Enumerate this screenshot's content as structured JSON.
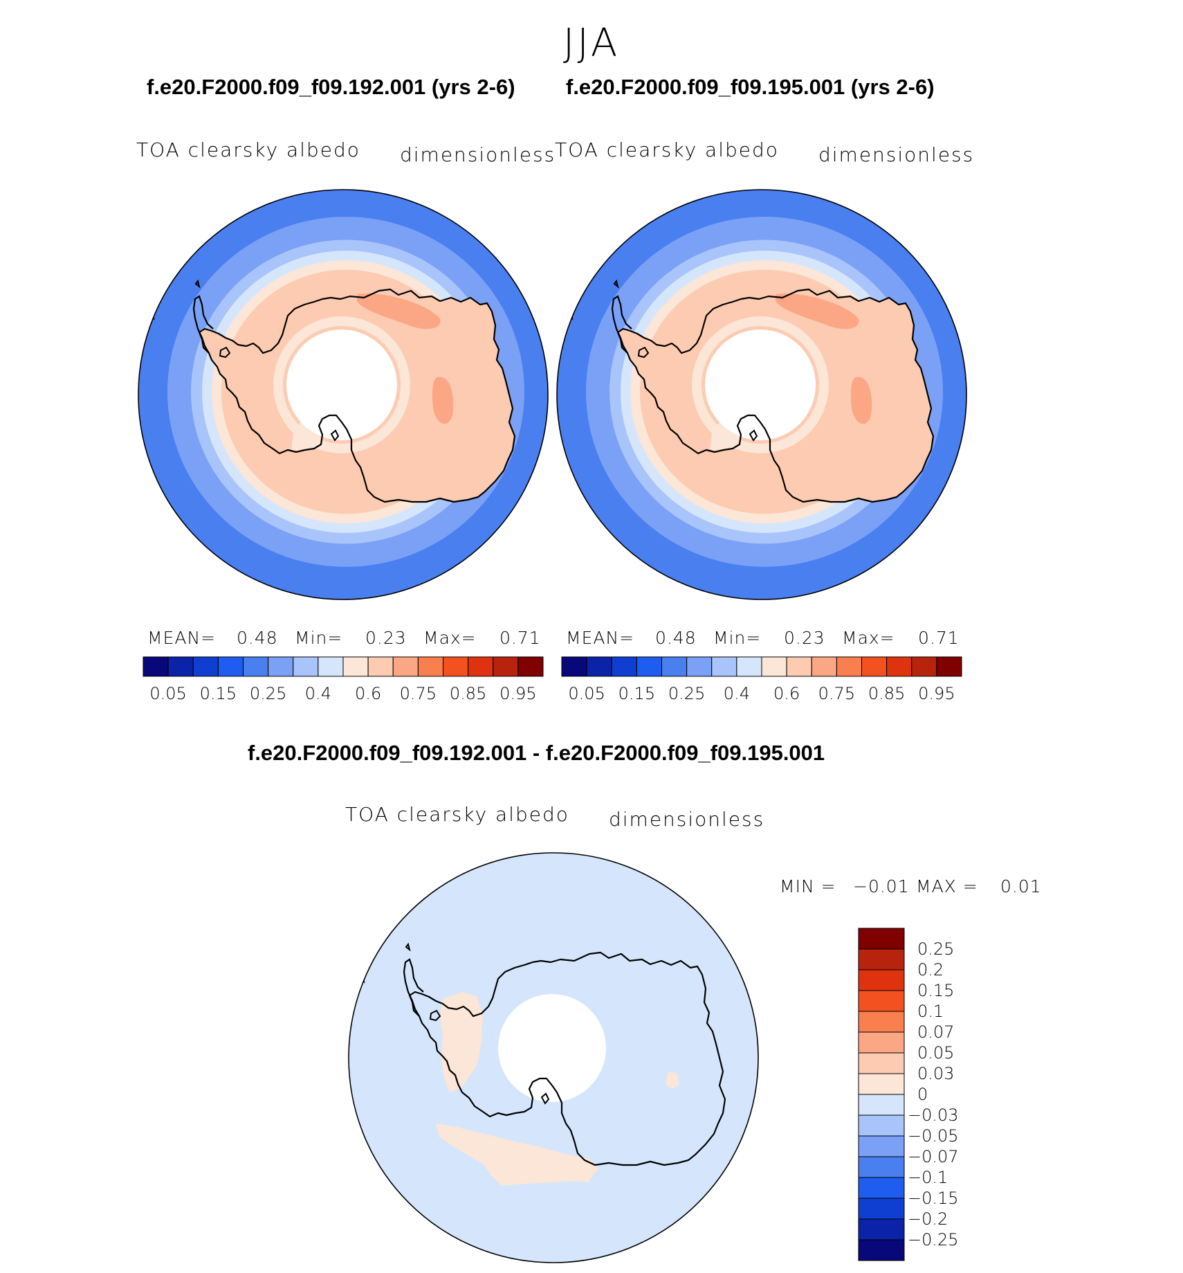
{
  "figure": {
    "season": "JJA",
    "case_top_left": "f.e20.F2000.f09_f09.192.001 (yrs 2-6)",
    "case_top_right": "f.e20.F2000.f09_f09.195.001 (yrs 2-6)",
    "diff_title": "f.e20.F2000.f09_f09.192.001 - f.e20.F2000.f09_f09.195.001"
  },
  "panels": [
    {
      "variable": "TOA clearsky albedo",
      "units": "dimensionless",
      "mean_label": "MEAN=",
      "mean": "0.48",
      "min_label": "Min=",
      "min": "0.23",
      "max_label": "Max=",
      "max": "0.71"
    },
    {
      "variable": "TOA clearsky albedo",
      "units": "dimensionless",
      "mean_label": "MEAN=",
      "mean": "0.48",
      "min_label": "Min=",
      "min": "0.23",
      "max_label": "Max=",
      "max": "0.71"
    }
  ],
  "diff_panel": {
    "variable": "TOA clearsky albedo",
    "units": "dimensionless",
    "min_label": "MIN =",
    "min": "−0.01",
    "max_label": "MAX =",
    "max": "0.01"
  },
  "colorbar_main": {
    "colors": [
      "#08087a",
      "#0a23a8",
      "#0e3fd0",
      "#1f5cf0",
      "#4a7ff0",
      "#7ba1f7",
      "#a9c4fa",
      "#d5e6fc",
      "#fbe6d7",
      "#fccbb2",
      "#fba785",
      "#f9804e",
      "#f35220",
      "#de330e",
      "#b7230c",
      "#800000"
    ],
    "labels": [
      "0.05",
      "0.15",
      "0.25",
      "0.4",
      "0.6",
      "0.75",
      "0.85",
      "0.95"
    ]
  },
  "colorbar_diff": {
    "colors_top_to_bottom": [
      "#800000",
      "#b7230c",
      "#de330e",
      "#f35220",
      "#f9804e",
      "#fba785",
      "#fccbb2",
      "#fbe6d7",
      "#d5e6fc",
      "#a9c4fa",
      "#7ba1f7",
      "#4a7ff0",
      "#1f5cf0",
      "#0e3fd0",
      "#0a23a8",
      "#08087a"
    ],
    "labels": [
      "0.25",
      "0.2",
      "0.15",
      "0.1",
      "0.07",
      "0.05",
      "0.03",
      "0",
      "−0.03",
      "−0.05",
      "−0.07",
      "−0.1",
      "−0.15",
      "−0.2",
      "−0.25"
    ]
  },
  "map_colors": {
    "ocean_outer": "#4a7ff0",
    "ocean_mid": "#7ba1f7",
    "ocean_light": "#a9c4fa",
    "ocean_pale": "#d5e6fc",
    "ice_pale": "#fbe6d7",
    "ice_light": "#fccbb2",
    "ice_mid": "#fba785",
    "diff_background": "#d5e6fc",
    "diff_positive": "#fbe6d7",
    "missing": "#ffffff",
    "coastline": "#000000"
  }
}
